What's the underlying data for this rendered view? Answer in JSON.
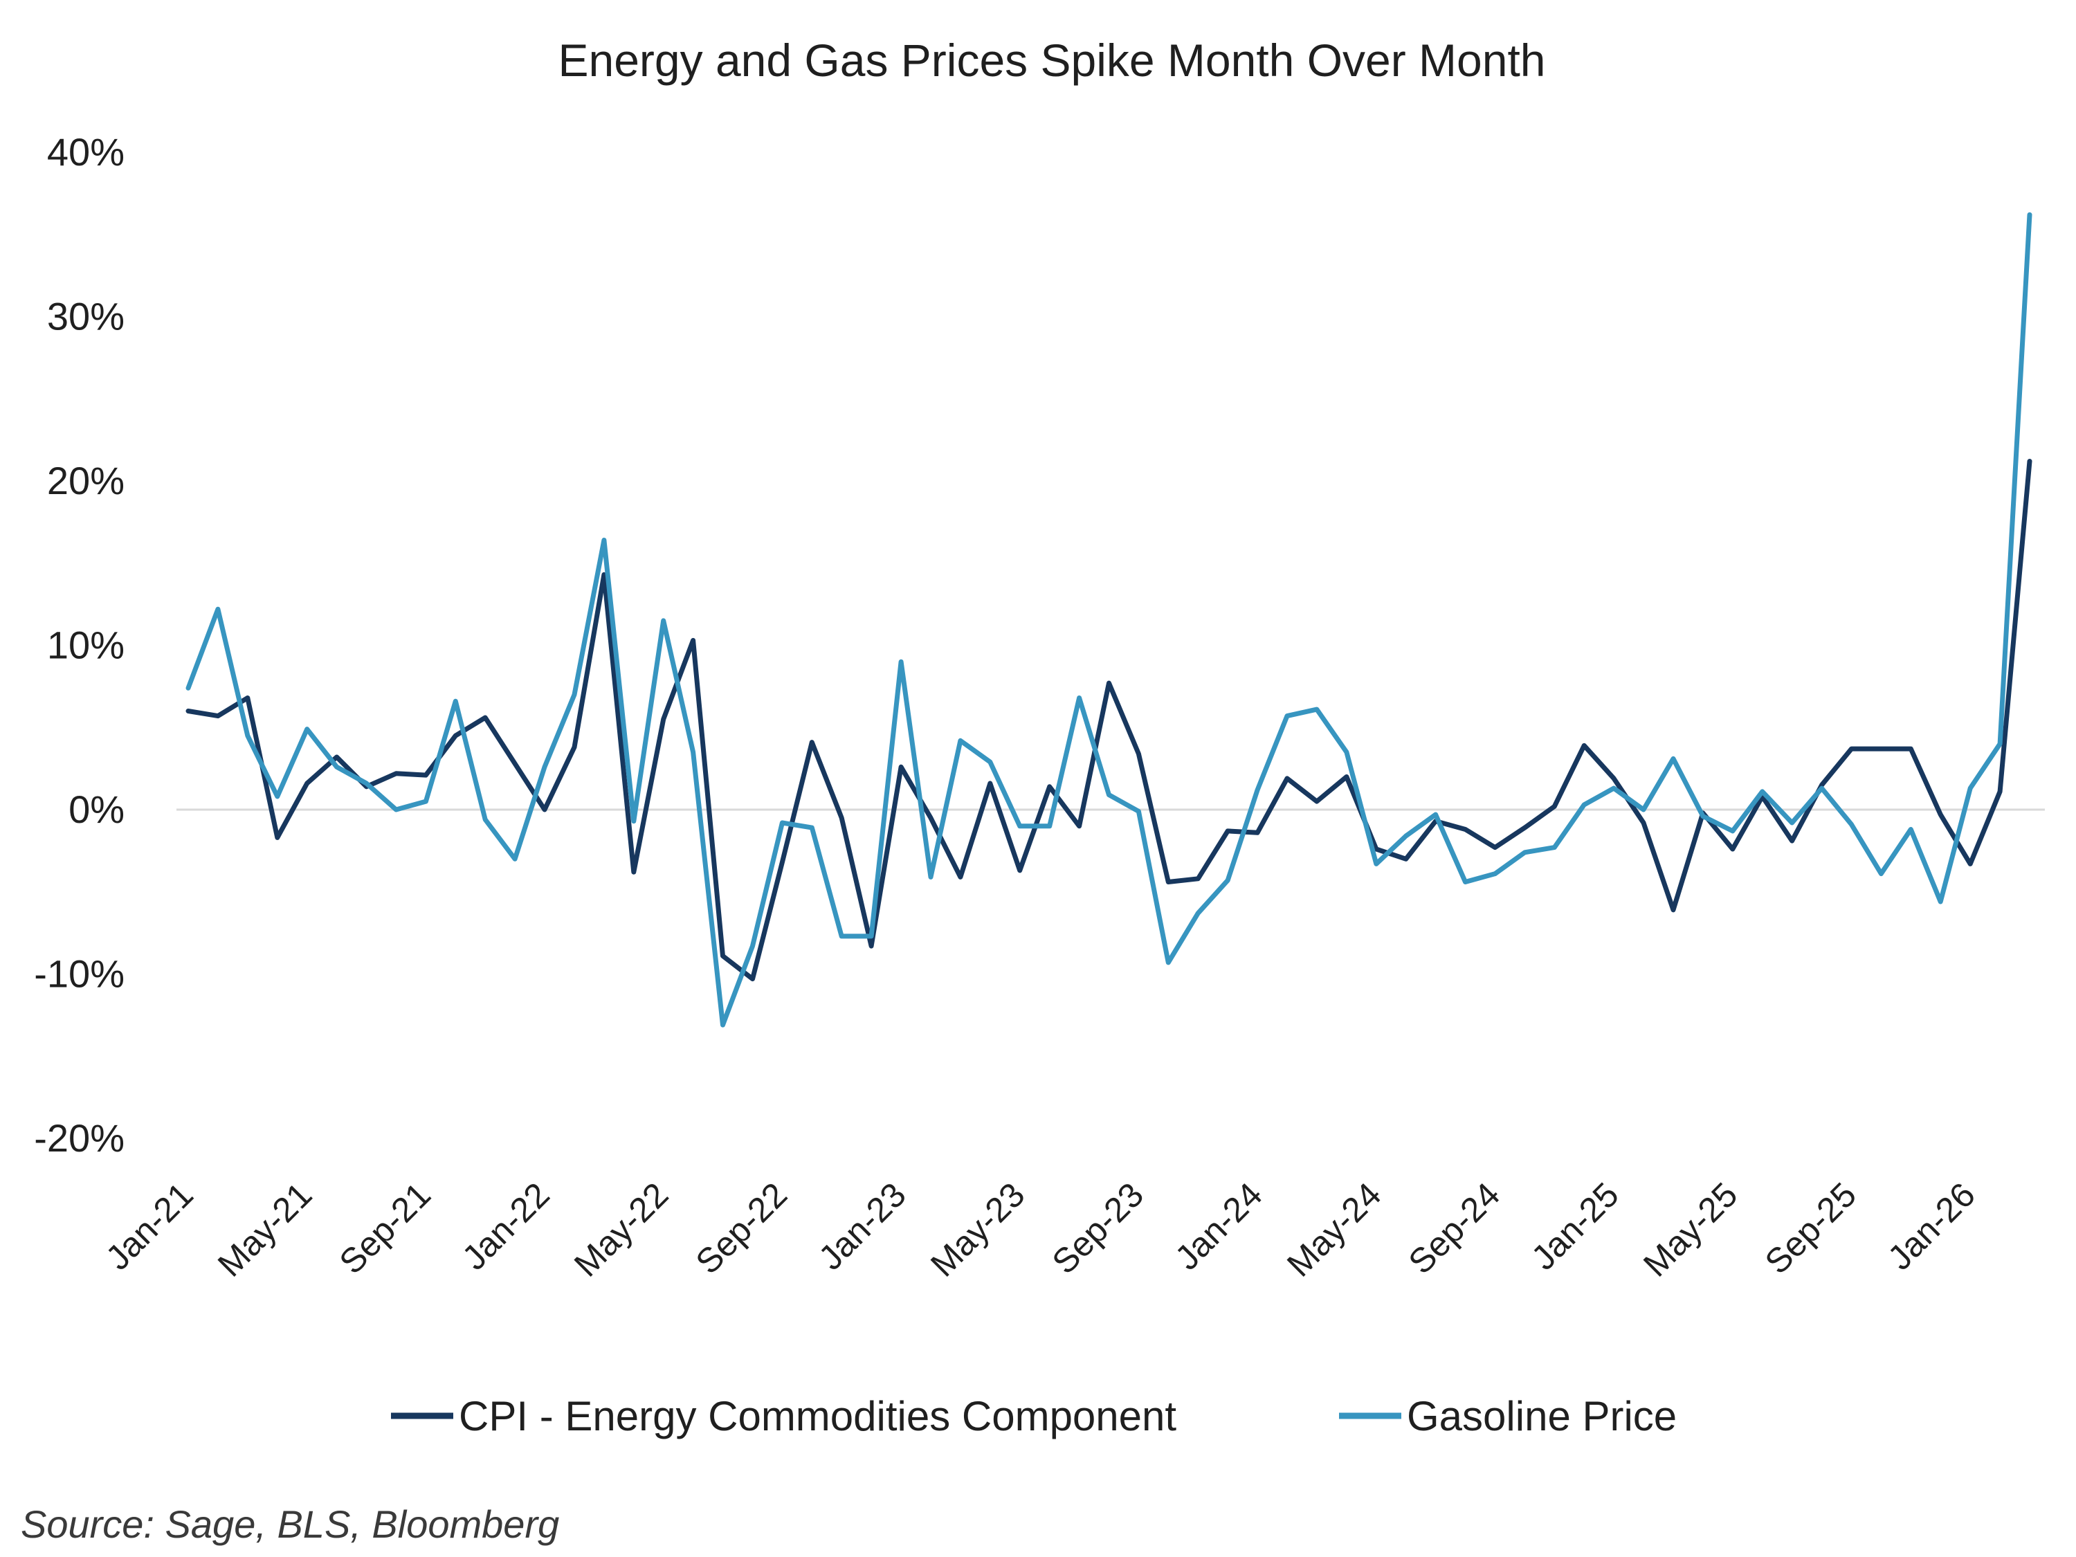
{
  "chart_data": {
    "type": "line",
    "title": "Energy and Gas Prices Spike Month Over Month",
    "xlabel": "",
    "ylabel": "",
    "ylim": [
      -20,
      40
    ],
    "yticks": [
      40,
      30,
      20,
      10,
      0,
      -10,
      -20
    ],
    "ytick_labels": [
      "40%",
      "30%",
      "20%",
      "10%",
      "0%",
      "-10%",
      "-20%"
    ],
    "xticks": [
      {
        "index": 0,
        "label": "Jan-21"
      },
      {
        "index": 4,
        "label": "May-21"
      },
      {
        "index": 8,
        "label": "Sep-21"
      },
      {
        "index": 12,
        "label": "Jan-22"
      },
      {
        "index": 16,
        "label": "May-22"
      },
      {
        "index": 20,
        "label": "Sep-22"
      },
      {
        "index": 24,
        "label": "Jan-23"
      },
      {
        "index": 28,
        "label": "May-23"
      },
      {
        "index": 32,
        "label": "Sep-23"
      },
      {
        "index": 36,
        "label": "Jan-24"
      },
      {
        "index": 40,
        "label": "May-24"
      },
      {
        "index": 44,
        "label": "Sep-24"
      },
      {
        "index": 48,
        "label": "Jan-25"
      },
      {
        "index": 52,
        "label": "May-25"
      },
      {
        "index": 56,
        "label": "Sep-25"
      },
      {
        "index": 60,
        "label": "Jan-26"
      }
    ],
    "legend_position": "bottom",
    "grid": false,
    "series": [
      {
        "name": "CPI - Energy Commodities Component",
        "color": "#17375e",
        "values": [
          6.0,
          5.7,
          6.8,
          -1.7,
          1.6,
          3.2,
          1.4,
          2.2,
          2.1,
          4.5,
          5.6,
          2.8,
          0.0,
          3.8,
          14.3,
          -3.8,
          5.5,
          10.3,
          -8.9,
          -10.3,
          -3.2,
          4.1,
          -0.5,
          -8.3,
          2.6,
          -0.5,
          -4.1,
          1.6,
          -3.7,
          1.4,
          -1.0,
          7.7,
          3.4,
          -4.4,
          -4.2,
          -1.3,
          -1.4,
          1.9,
          0.5,
          2.0,
          -2.4,
          -3.0,
          -0.7,
          -1.2,
          -2.3,
          -1.1,
          0.2,
          3.9,
          1.9,
          -0.8,
          -6.1,
          -0.2,
          -2.4,
          0.8,
          -1.9,
          1.5,
          3.7,
          3.7,
          3.7,
          -0.3,
          -3.3,
          1.1,
          21.2
        ]
      },
      {
        "name": "Gasoline Price",
        "color": "#3795c0",
        "values": [
          7.4,
          12.2,
          4.5,
          0.8,
          4.9,
          2.6,
          1.6,
          0.0,
          0.5,
          6.6,
          -0.6,
          -3.0,
          2.6,
          7.0,
          16.4,
          -0.7,
          11.5,
          3.5,
          -13.1,
          -8.3,
          -0.8,
          -1.1,
          -7.7,
          -7.7,
          9.0,
          -4.1,
          4.2,
          2.9,
          -1.0,
          -1.0,
          6.8,
          0.9,
          -0.1,
          -9.3,
          -6.3,
          -4.3,
          1.2,
          5.7,
          6.1,
          3.5,
          -3.3,
          -1.6,
          -0.3,
          -4.4,
          -3.9,
          -2.6,
          -2.3,
          0.3,
          1.3,
          0.0,
          3.1,
          -0.4,
          -1.3,
          1.1,
          -0.8,
          1.3,
          -0.9,
          -3.9,
          -1.2,
          -5.6,
          1.3,
          4.0,
          36.2
        ]
      }
    ]
  },
  "source": "Source: Sage, BLS, Bloomberg"
}
